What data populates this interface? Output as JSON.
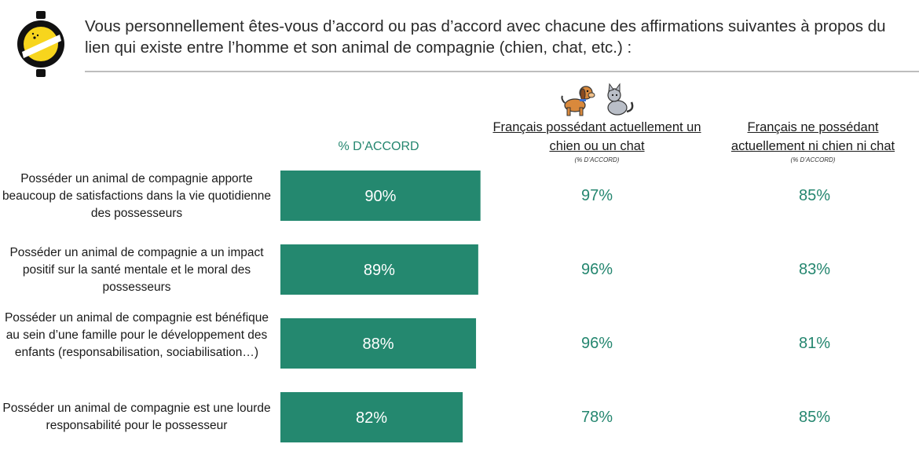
{
  "title": "Vous personnellement êtes-vous d’accord ou pas d’accord avec chacune des affirmations suivantes à propos du lien qui existe entre l’homme et son animal de compagnie (chien, chat, etc.) :",
  "icons": {
    "logo": "yellow-black-logo-icon",
    "pets": "dog-and-cat-icon"
  },
  "colors": {
    "accent": "#24886f",
    "bar_text": "#ffffff",
    "rule": "#bdbdbd"
  },
  "columns": {
    "main": "% D’ACCORD",
    "owners": {
      "label": "Français possédant actuellement un chien ou un chat",
      "sub": "(% D’ACCORD)"
    },
    "non_owners": {
      "label": "Français ne possédant actuellement ni chien ni chat",
      "sub": "(% D’ACCORD)"
    }
  },
  "chart_data": {
    "type": "bar",
    "orientation": "horizontal",
    "categories": [
      "Posséder un animal de compagnie apporte beaucoup de satisfactions dans la vie quotidienne des possesseurs",
      "Posséder un animal de compagnie a un impact positif sur la santé mentale et le moral des possesseurs",
      "Posséder un animal de compagnie est bénéfique au sein d’une famille pour le développement des enfants (responsabilisation, sociabilisation…)",
      "Posséder un animal de compagnie est une lourde responsabilité pour le possesseur"
    ],
    "series": [
      {
        "name": "% D’ACCORD",
        "values": [
          90,
          89,
          88,
          82
        ],
        "labels": [
          "90%",
          "89%",
          "88%",
          "82%"
        ]
      }
    ],
    "table": {
      "owners": [
        "97%",
        "96%",
        "96%",
        "78%"
      ],
      "non_owners": [
        "85%",
        "83%",
        "81%",
        "85%"
      ]
    },
    "xlim": [
      0,
      100
    ],
    "grid": false
  }
}
